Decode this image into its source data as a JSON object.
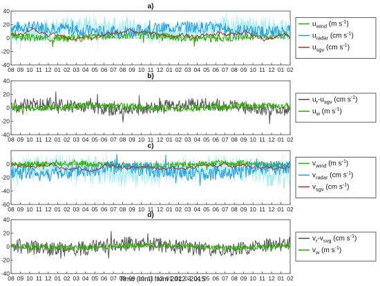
{
  "figure": {
    "xlabel": "Time (mm) from 2012 -2015",
    "month_ticks": [
      "08",
      "09",
      "10",
      "11",
      "12",
      "01",
      "02",
      "03",
      "04",
      "05",
      "06",
      "07",
      "08",
      "09",
      "10",
      "11",
      "12",
      "01",
      "02",
      "03",
      "04",
      "05",
      "06",
      "07",
      "08",
      "09",
      "10",
      "11",
      "12",
      "01",
      "02"
    ]
  },
  "colors": {
    "green": "#2db300",
    "blue": "#2b9fe6",
    "cyan_band": "#8fe8f2",
    "red": "#a33a33",
    "gray": "#555555"
  },
  "chart_data": [
    {
      "type": "line",
      "panel": "a)",
      "ylim": [
        -40,
        40
      ],
      "yticks": [
        "40",
        "20",
        "0",
        "-20",
        "-40"
      ],
      "legend": [
        {
          "main": "u",
          "sub": "wind",
          "unit": "(m s",
          "exp": "-1",
          "close": ")",
          "color": "#2db300"
        },
        {
          "main": "u",
          "sub": "radar",
          "unit": "(cm s",
          "exp": "-1",
          "close": ")",
          "color": "#2b9fe6"
        },
        {
          "main": "u",
          "sub": "sgv",
          "unit": "(cm s",
          "exp": "-1",
          "close": ")",
          "color": "#a33a33"
        }
      ],
      "series": [
        {
          "key": "band",
          "color": "#8fe8f2",
          "kind": "band",
          "amp": 12,
          "seed": 11,
          "base": 12
        },
        {
          "key": "green",
          "color": "#2db300",
          "kind": "noise",
          "amp": 6,
          "seed": 3,
          "base": 2,
          "width": 1.1
        },
        {
          "key": "blue",
          "color": "#2b9fe6",
          "kind": "noise",
          "amp": 9,
          "seed": 7,
          "base": 13,
          "width": 1.1
        },
        {
          "key": "red",
          "color": "#a33a33",
          "kind": "smooth",
          "amp": 5,
          "seed": 5,
          "base": 4,
          "width": 1.0
        }
      ],
      "points": {
        "x_start": 0,
        "x_end": 30,
        "n": 450
      }
    },
    {
      "type": "line",
      "panel": "b)",
      "ylim": [
        -40,
        40
      ],
      "yticks": [
        "40",
        "20",
        "0",
        "-20",
        "-40"
      ],
      "legend": [
        {
          "main": "u",
          "sub": "r",
          "mid": "-u",
          "sub2": "sgv",
          "unit": "(cm s",
          "exp": "-1",
          "close": ")",
          "color": "#555555"
        },
        {
          "main": "u",
          "sub": "w",
          "unit": "(m s",
          "exp": "-1",
          "close": ")",
          "color": "#2db300"
        }
      ],
      "series": [
        {
          "key": "gray",
          "color": "#555555",
          "kind": "noise",
          "amp": 10,
          "seed": 19,
          "base": 1,
          "width": 1.0
        },
        {
          "key": "green",
          "color": "#2db300",
          "kind": "noise",
          "amp": 5,
          "seed": 23,
          "base": 1,
          "width": 1.1
        }
      ],
      "points": {
        "x_start": 0,
        "x_end": 30,
        "n": 450
      }
    },
    {
      "type": "line",
      "panel": "c)",
      "ylim": [
        -60,
        20
      ],
      "yticks": [
        "0",
        "-20",
        "-40",
        "-60"
      ],
      "legend": [
        {
          "main": "v",
          "sub": "wind",
          "unit": "(m s",
          "exp": "-1",
          "close": ")",
          "color": "#2db300"
        },
        {
          "main": "v",
          "sub": "radar",
          "unit": "(cm s",
          "exp": "-1",
          "close": ")",
          "color": "#2b9fe6"
        },
        {
          "main": "v",
          "sub": "sgv",
          "unit": "(cm s",
          "exp": "-1",
          "close": ")",
          "color": "#a33a33"
        }
      ],
      "series": [
        {
          "key": "band",
          "color": "#8fe8f2",
          "kind": "band",
          "amp": 14,
          "seed": 31,
          "base": -10
        },
        {
          "key": "green",
          "color": "#2db300",
          "kind": "noise",
          "amp": 5,
          "seed": 37,
          "base": -1,
          "width": 1.1
        },
        {
          "key": "blue",
          "color": "#2b9fe6",
          "kind": "noise",
          "amp": 11,
          "seed": 41,
          "base": -10,
          "width": 1.1
        },
        {
          "key": "red",
          "color": "#a33a33",
          "kind": "smooth",
          "amp": 4,
          "seed": 43,
          "base": -4,
          "width": 1.0
        }
      ],
      "points": {
        "x_start": 0,
        "x_end": 30,
        "n": 450
      }
    },
    {
      "type": "line",
      "panel": "d)",
      "ylim": [
        -40,
        40
      ],
      "yticks": [
        "40",
        "20",
        "0",
        "-20",
        "-40"
      ],
      "legend": [
        {
          "main": "v",
          "sub": "r",
          "mid": "-v",
          "sub2": "svg",
          "unit": "(cm s",
          "exp": "-1",
          "close": ")",
          "color": "#555555"
        },
        {
          "main": "v",
          "sub": "w",
          "unit": "(m s",
          "exp": "-1",
          "close": ")",
          "color": "#2db300"
        }
      ],
      "series": [
        {
          "key": "gray",
          "color": "#555555",
          "kind": "noise",
          "amp": 11,
          "seed": 53,
          "base": 0,
          "width": 1.0
        },
        {
          "key": "green",
          "color": "#2db300",
          "kind": "noise",
          "amp": 4,
          "seed": 59,
          "base": 0,
          "width": 1.1
        }
      ],
      "points": {
        "x_start": 0,
        "x_end": 30,
        "n": 450
      }
    }
  ]
}
